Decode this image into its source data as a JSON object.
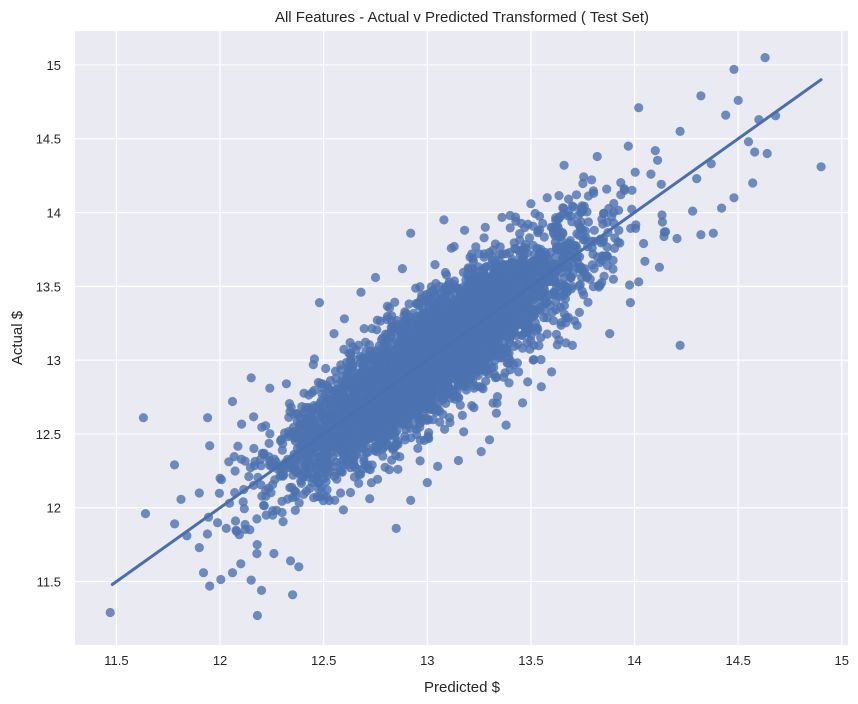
{
  "chart_data": {
    "type": "scatter",
    "title": "All Features - Actual v Predicted Transformed ( Test Set)",
    "xlabel": "Predicted $",
    "ylabel": "Actual $",
    "xlim": [
      11.3,
      15.03
    ],
    "ylim": [
      11.07,
      15.23
    ],
    "xticks": [
      11.5,
      12,
      12.5,
      13,
      13.5,
      14,
      14.5,
      15
    ],
    "xtick_labels": [
      "11.5",
      "12",
      "12.5",
      "13",
      "13.5",
      "14",
      "14.5",
      "15"
    ],
    "yticks": [
      11.5,
      12,
      12.5,
      13,
      13.5,
      14,
      14.5,
      15
    ],
    "ytick_labels": [
      "11.5",
      "12",
      "12.5",
      "13",
      "13.5",
      "14",
      "14.5",
      "15"
    ],
    "grid": true,
    "background_color": "#eaeaf2",
    "marker_color": "#4c72b0",
    "fit_line": {
      "x": [
        11.48,
        14.9
      ],
      "y": [
        11.48,
        14.9
      ]
    },
    "points": [
      [
        11.47,
        11.29
      ],
      [
        11.63,
        12.61
      ],
      [
        11.64,
        11.96
      ],
      [
        11.78,
        12.29
      ],
      [
        11.84,
        11.81
      ],
      [
        11.9,
        12.1
      ],
      [
        11.92,
        11.56
      ],
      [
        11.95,
        11.47
      ],
      [
        11.9,
        11.73
      ],
      [
        11.95,
        12.42
      ],
      [
        11.94,
        12.61
      ],
      [
        12.0,
        12.2
      ],
      [
        12.06,
        11.56
      ],
      [
        12.08,
        11.84
      ],
      [
        12.1,
        11.62
      ],
      [
        12.15,
        11.51
      ],
      [
        12.18,
        11.27
      ],
      [
        12.2,
        11.44
      ],
      [
        12.26,
        11.69
      ],
      [
        12.35,
        11.41
      ],
      [
        12.38,
        11.6
      ],
      [
        12.34,
        11.64
      ],
      [
        12.06,
        12.72
      ],
      [
        12.15,
        12.88
      ],
      [
        12.24,
        12.81
      ],
      [
        12.32,
        12.84
      ],
      [
        12.45,
        12.97
      ],
      [
        12.48,
        13.39
      ],
      [
        12.55,
        13.18
      ],
      [
        12.6,
        13.28
      ],
      [
        12.68,
        13.46
      ],
      [
        12.75,
        13.56
      ],
      [
        12.88,
        13.62
      ],
      [
        12.92,
        13.86
      ],
      [
        13.08,
        13.95
      ],
      [
        13.13,
        13.77
      ],
      [
        12.85,
        11.86
      ],
      [
        12.92,
        12.05
      ],
      [
        13.0,
        12.17
      ],
      [
        13.05,
        12.28
      ],
      [
        13.15,
        12.32
      ],
      [
        13.26,
        12.38
      ],
      [
        13.3,
        12.46
      ],
      [
        13.38,
        12.56
      ],
      [
        13.46,
        12.71
      ],
      [
        13.55,
        12.82
      ],
      [
        13.6,
        12.92
      ],
      [
        13.7,
        13.1
      ],
      [
        13.88,
        13.18
      ],
      [
        13.98,
        13.39
      ],
      [
        14.02,
        13.53
      ],
      [
        13.72,
        14.12
      ],
      [
        13.5,
        14.06
      ],
      [
        13.66,
        14.32
      ],
      [
        13.82,
        14.38
      ],
      [
        13.97,
        14.45
      ],
      [
        14.02,
        14.71
      ],
      [
        14.1,
        14.42
      ],
      [
        14.22,
        14.55
      ],
      [
        14.32,
        14.79
      ],
      [
        14.44,
        14.66
      ],
      [
        14.5,
        14.76
      ],
      [
        14.48,
        14.97
      ],
      [
        14.63,
        15.05
      ],
      [
        14.6,
        14.63
      ],
      [
        14.55,
        14.48
      ],
      [
        14.58,
        14.41
      ],
      [
        14.64,
        14.4
      ],
      [
        14.9,
        14.31
      ],
      [
        14.12,
        13.63
      ],
      [
        14.22,
        13.1
      ],
      [
        14.32,
        13.85
      ],
      [
        14.38,
        13.86
      ],
      [
        14.42,
        14.03
      ],
      [
        14.48,
        14.1
      ],
      [
        14.57,
        14.2
      ],
      [
        14.37,
        14.33
      ],
      [
        14.3,
        14.23
      ],
      [
        14.28,
        14.01
      ],
      [
        14.15,
        13.87
      ],
      [
        14.05,
        13.67
      ],
      [
        13.92,
        13.8
      ],
      [
        13.4,
        13.98
      ],
      [
        13.28,
        13.9
      ],
      [
        13.18,
        13.88
      ]
    ],
    "cloud": {
      "n": 4200,
      "slope": 1.0,
      "x_mean": 13.02,
      "x_sd": 0.36,
      "residual_sd": 0.2,
      "seed": 7
    }
  }
}
